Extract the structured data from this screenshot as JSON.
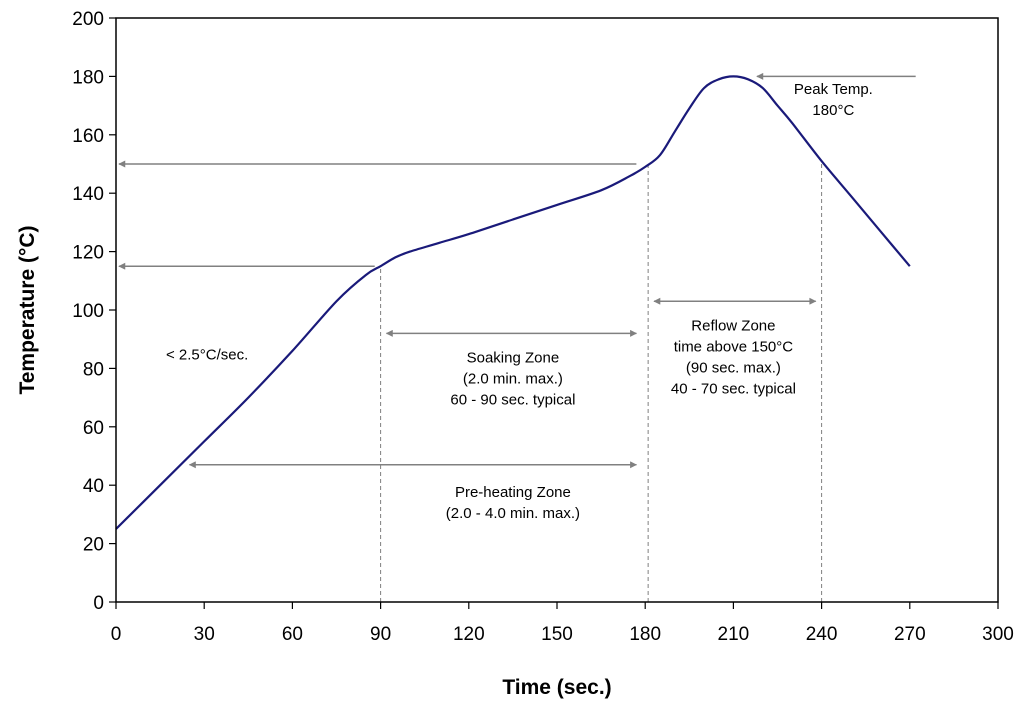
{
  "chart_data": {
    "type": "line",
    "xlabel": "Time (sec.)",
    "ylabel": "Temperature (°C)",
    "xlim": [
      0,
      300
    ],
    "ylim": [
      0,
      200
    ],
    "x_ticks": [
      0,
      30,
      60,
      90,
      120,
      150,
      180,
      210,
      240,
      270,
      300
    ],
    "y_ticks": [
      0,
      20,
      40,
      60,
      80,
      100,
      120,
      140,
      160,
      180,
      200
    ],
    "grid": false,
    "line_color": "#1a1a7a",
    "annotation_color": "#808080",
    "series": [
      {
        "x": [
          0,
          15,
          30,
          45,
          60,
          75,
          85,
          90,
          95,
          100,
          110,
          120,
          135,
          150,
          165,
          175,
          180,
          185,
          190,
          195,
          200,
          205,
          210,
          215,
          220,
          225,
          230,
          240,
          250,
          260,
          270
        ],
        "y": [
          25,
          40,
          55,
          70,
          86,
          103,
          112,
          115,
          118,
          120,
          123,
          126,
          131,
          136,
          141,
          146,
          149,
          153,
          161,
          169,
          176,
          179,
          180,
          179,
          176,
          170,
          164,
          151,
          139,
          127,
          115
        ]
      }
    ],
    "reference_lines": [
      {
        "type": "vertical",
        "x": 90,
        "y_to": 115
      },
      {
        "type": "vertical",
        "x": 181,
        "y_to": 150
      },
      {
        "type": "vertical",
        "x": 240,
        "y_to": 151
      }
    ],
    "arrows": [
      {
        "name": "peak-arrow",
        "from": [
          272,
          180
        ],
        "to": [
          218,
          180
        ],
        "heads": "end"
      },
      {
        "name": "150-level-arrow",
        "from": [
          177,
          150
        ],
        "to": [
          1,
          150
        ],
        "heads": "end"
      },
      {
        "name": "115-level-arrow",
        "from": [
          88,
          115
        ],
        "to": [
          1,
          115
        ],
        "heads": "end"
      },
      {
        "name": "soaking-arrow",
        "from": [
          92,
          92
        ],
        "to": [
          177,
          92
        ],
        "heads": "both"
      },
      {
        "name": "preheating-arrow",
        "from": [
          25,
          47
        ],
        "to": [
          177,
          47
        ],
        "heads": "both"
      },
      {
        "name": "reflow-arrow",
        "from": [
          183,
          103
        ],
        "to": [
          238,
          103
        ],
        "heads": "both"
      }
    ],
    "annotations": [
      {
        "name": "peak-temp-label",
        "x": 244,
        "y": 174,
        "lines": [
          "Peak Temp.",
          "180°C"
        ]
      },
      {
        "name": "ramp-rate-label",
        "x": 31,
        "y": 83,
        "lines": [
          "< 2.5°C/sec."
        ]
      },
      {
        "name": "soaking-zone-label",
        "x": 135,
        "y": 82,
        "lines": [
          "Soaking Zone",
          "(2.0 min.  max.)",
          "60 - 90 sec. typical"
        ]
      },
      {
        "name": "preheating-zone-label",
        "x": 135,
        "y": 36,
        "lines": [
          "Pre-heating Zone",
          "(2.0 - 4.0 min. max.)"
        ]
      },
      {
        "name": "reflow-zone-label",
        "x": 210,
        "y": 93,
        "lines": [
          "Reflow Zone",
          "time above 150°C",
          "(90 sec. max.)",
          "40 - 70 sec. typical"
        ]
      }
    ]
  }
}
